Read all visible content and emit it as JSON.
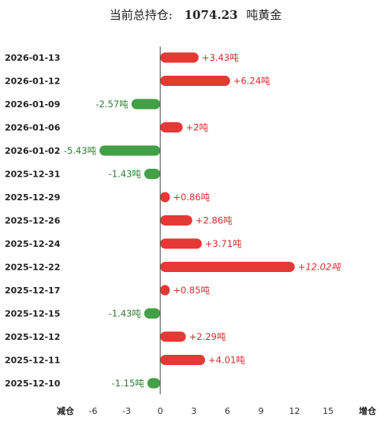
{
  "title_prefix": "当前总持仓:",
  "title_value": "1074.23",
  "title_suffix": "吨黄金",
  "colors": {
    "increase": "#e53935",
    "decrease": "#43a047",
    "increase_text": "#d32f2f",
    "decrease_text": "#2e7d32"
  },
  "chart_data": {
    "type": "bar",
    "orientation": "horizontal",
    "categories": [
      "2026-01-13",
      "2026-01-12",
      "2026-01-09",
      "2026-01-06",
      "2026-01-02",
      "2025-12-31",
      "2025-12-29",
      "2025-12-26",
      "2025-12-24",
      "2025-12-22",
      "2025-12-17",
      "2025-12-15",
      "2025-12-12",
      "2025-12-11",
      "2025-12-10"
    ],
    "values": [
      3.43,
      6.24,
      -2.57,
      2,
      -5.43,
      -1.43,
      0.86,
      2.86,
      3.71,
      12.02,
      0.85,
      -1.43,
      2.29,
      4.01,
      -1.15
    ],
    "value_labels": [
      "+3.43吨",
      "+6.24吨",
      "-2.57吨",
      "+2吨",
      "-5.43吨",
      "-1.43吨",
      "+0.86吨",
      "+2.86吨",
      "+3.71吨",
      "+12.02吨",
      "+0.85吨",
      "-1.43吨",
      "+2.29吨",
      "+4.01吨",
      "-1.15吨"
    ],
    "xlim": [
      -6,
      15
    ],
    "xticks": [
      "-6",
      "-3",
      "0",
      "3",
      "6",
      "9",
      "12",
      "15"
    ],
    "xtick_values": [
      -6,
      -3,
      0,
      3,
      6,
      9,
      12,
      15
    ],
    "xlabel_left": "减仓",
    "xlabel_right": "增仓",
    "grid": false
  }
}
